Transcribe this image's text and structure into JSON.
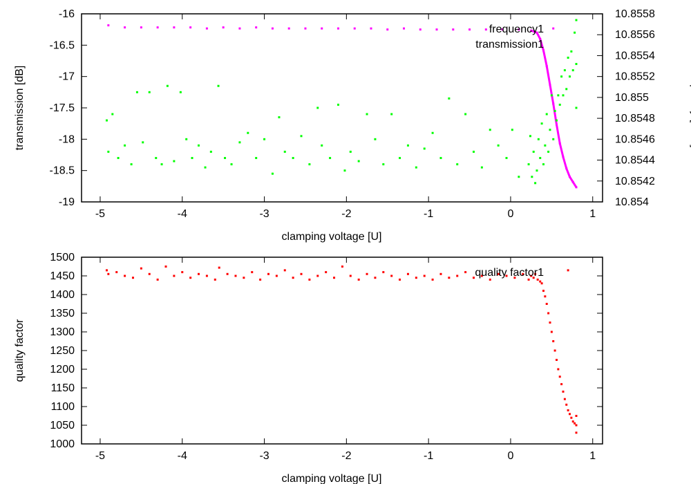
{
  "chart_data": [
    {
      "type": "scatter",
      "xlabel": "clamping voltage [U]",
      "ylabel": "transmission [dB]",
      "y2label": "frequency [GHz]",
      "xlim": [
        -5.227,
        1.12
      ],
      "ylim": [
        -19,
        -16
      ],
      "y2lim": [
        10.854,
        10.8558
      ],
      "xticks": [
        "-5",
        "-4",
        "-3",
        "-2",
        "-1",
        "0",
        "1"
      ],
      "yticks": [
        "-19",
        "-18.5",
        "-18",
        "-17.5",
        "-17",
        "-16.5",
        "-16"
      ],
      "y2ticks": [
        "10.854",
        "10.8542",
        "10.8544",
        "10.8546",
        "10.8548",
        "10.855",
        "10.8552",
        "10.8554",
        "10.8556",
        "10.8558"
      ],
      "legend_placement": "top-right",
      "series": [
        {
          "name": "frequency1",
          "axis": "y2",
          "color": "#ff00ff",
          "x": [
            -4.9,
            -4.7,
            -4.5,
            -4.3,
            -4.1,
            -3.9,
            -3.7,
            -3.5,
            -3.3,
            -3.1,
            -2.9,
            -2.7,
            -2.5,
            -2.3,
            -2.1,
            -1.9,
            -1.7,
            -1.5,
            -1.3,
            -1.1,
            -0.9,
            -0.7,
            -0.5,
            -0.3,
            -0.1,
            0.1,
            0.25,
            0.32,
            0.36,
            0.4,
            0.44,
            0.48,
            0.52,
            0.56,
            0.6,
            0.64,
            0.68,
            0.72,
            0.76,
            0.8,
            0.52
          ],
          "y": [
            10.85569,
            10.85567,
            10.85567,
            10.85567,
            10.85567,
            10.85567,
            10.85566,
            10.85567,
            10.85566,
            10.85567,
            10.85566,
            10.85566,
            10.85566,
            10.85566,
            10.85566,
            10.85566,
            10.85566,
            10.85565,
            10.85566,
            10.85565,
            10.85565,
            10.85565,
            10.85565,
            10.85565,
            10.85565,
            10.85565,
            10.85564,
            10.85562,
            10.85556,
            10.85545,
            10.8553,
            10.85512,
            10.85494,
            10.85474,
            10.85456,
            10.85443,
            10.85432,
            10.85424,
            10.85419,
            10.85414,
            10.85566
          ]
        },
        {
          "name": "transmission1",
          "axis": "y",
          "color": "#00ff00",
          "x": [
            -4.92,
            -4.9,
            -4.85,
            -4.78,
            -4.7,
            -4.62,
            -4.55,
            -4.48,
            -4.4,
            -4.32,
            -4.25,
            -4.18,
            -4.1,
            -4.02,
            -3.95,
            -3.88,
            -3.8,
            -3.72,
            -3.65,
            -3.56,
            -3.48,
            -3.4,
            -3.3,
            -3.2,
            -3.1,
            -3.0,
            -2.9,
            -2.82,
            -2.75,
            -2.65,
            -2.55,
            -2.45,
            -2.35,
            -2.3,
            -2.2,
            -2.1,
            -2.02,
            -1.95,
            -1.85,
            -1.75,
            -1.65,
            -1.55,
            -1.45,
            -1.35,
            -1.25,
            -1.15,
            -1.05,
            -0.95,
            -0.85,
            -0.75,
            -0.65,
            -0.55,
            -0.45,
            -0.35,
            -0.25,
            -0.15,
            -0.05,
            0.02,
            0.1,
            0.22,
            0.24,
            0.26,
            0.28,
            0.3,
            0.32,
            0.34,
            0.36,
            0.38,
            0.4,
            0.42,
            0.44,
            0.46,
            0.48,
            0.5,
            0.52,
            0.54,
            0.56,
            0.58,
            0.6,
            0.62,
            0.64,
            0.66,
            0.68,
            0.7,
            0.72,
            0.74,
            0.76,
            0.78,
            0.8,
            0.8,
            0.8
          ],
          "y": [
            -17.7,
            -18.2,
            -17.6,
            -18.3,
            -18.1,
            -18.4,
            -17.25,
            -18.05,
            -17.25,
            -18.3,
            -18.4,
            -17.15,
            -18.35,
            -17.25,
            -18.0,
            -18.3,
            -18.1,
            -18.45,
            -18.2,
            -17.15,
            -18.3,
            -18.4,
            -18.05,
            -17.9,
            -18.3,
            -18.0,
            -18.55,
            -17.65,
            -18.2,
            -18.3,
            -17.95,
            -18.4,
            -17.5,
            -18.1,
            -18.3,
            -17.45,
            -18.5,
            -18.2,
            -18.35,
            -17.6,
            -18.0,
            -18.4,
            -17.6,
            -18.3,
            -18.1,
            -18.45,
            -18.15,
            -17.9,
            -18.3,
            -17.35,
            -18.4,
            -17.6,
            -18.2,
            -18.45,
            -17.85,
            -18.1,
            -18.3,
            -17.85,
            -18.6,
            -18.4,
            -17.95,
            -18.6,
            -18.2,
            -18.7,
            -18.5,
            -18.0,
            -18.3,
            -17.75,
            -18.4,
            -18.1,
            -17.6,
            -18.2,
            -17.85,
            -17.3,
            -18.0,
            -17.55,
            -17.7,
            -17.3,
            -17.45,
            -17.0,
            -17.3,
            -16.9,
            -17.2,
            -16.7,
            -17.0,
            -16.6,
            -16.9,
            -16.3,
            -16.1,
            -17.5,
            -16.8
          ]
        }
      ]
    },
    {
      "type": "scatter",
      "xlabel": "clamping voltage [U]",
      "ylabel": "quality factor",
      "xlim": [
        -5.227,
        1.12
      ],
      "ylim": [
        1000,
        1500
      ],
      "xticks": [
        "-5",
        "-4",
        "-3",
        "-2",
        "-1",
        "0",
        "1"
      ],
      "yticks": [
        "1000",
        "1050",
        "1100",
        "1150",
        "1200",
        "1250",
        "1300",
        "1350",
        "1400",
        "1450",
        "1500"
      ],
      "legend_placement": "top-right",
      "series": [
        {
          "name": "quality factor1",
          "color": "#ff0000",
          "x": [
            -4.92,
            -4.9,
            -4.8,
            -4.7,
            -4.6,
            -4.5,
            -4.4,
            -4.3,
            -4.2,
            -4.1,
            -4.0,
            -3.9,
            -3.8,
            -3.7,
            -3.6,
            -3.55,
            -3.45,
            -3.35,
            -3.25,
            -3.15,
            -3.05,
            -2.95,
            -2.85,
            -2.75,
            -2.65,
            -2.55,
            -2.45,
            -2.35,
            -2.25,
            -2.15,
            -2.05,
            -1.95,
            -1.85,
            -1.75,
            -1.65,
            -1.55,
            -1.45,
            -1.35,
            -1.25,
            -1.15,
            -1.05,
            -0.95,
            -0.85,
            -0.75,
            -0.65,
            -0.55,
            -0.45,
            -0.35,
            -0.25,
            -0.15,
            -0.05,
            0.05,
            0.15,
            0.22,
            0.25,
            0.28,
            0.3,
            0.33,
            0.36,
            0.38,
            0.4,
            0.42,
            0.44,
            0.46,
            0.48,
            0.5,
            0.52,
            0.54,
            0.56,
            0.58,
            0.6,
            0.62,
            0.64,
            0.66,
            0.68,
            0.7,
            0.72,
            0.74,
            0.76,
            0.78,
            0.8,
            0.8,
            0.8,
            0.7
          ],
          "y": [
            1465,
            1455,
            1460,
            1450,
            1445,
            1470,
            1455,
            1440,
            1475,
            1450,
            1460,
            1445,
            1455,
            1450,
            1440,
            1472,
            1455,
            1450,
            1445,
            1460,
            1440,
            1455,
            1450,
            1465,
            1445,
            1455,
            1440,
            1450,
            1460,
            1445,
            1475,
            1450,
            1440,
            1455,
            1445,
            1460,
            1450,
            1440,
            1455,
            1445,
            1450,
            1440,
            1455,
            1445,
            1450,
            1460,
            1445,
            1450,
            1440,
            1455,
            1450,
            1445,
            1455,
            1440,
            1450,
            1445,
            1455,
            1440,
            1435,
            1430,
            1410,
            1395,
            1375,
            1350,
            1325,
            1300,
            1275,
            1250,
            1225,
            1200,
            1180,
            1160,
            1140,
            1120,
            1105,
            1090,
            1080,
            1070,
            1060,
            1055,
            1050,
            1030,
            1075,
            1465
          ]
        }
      ]
    }
  ]
}
